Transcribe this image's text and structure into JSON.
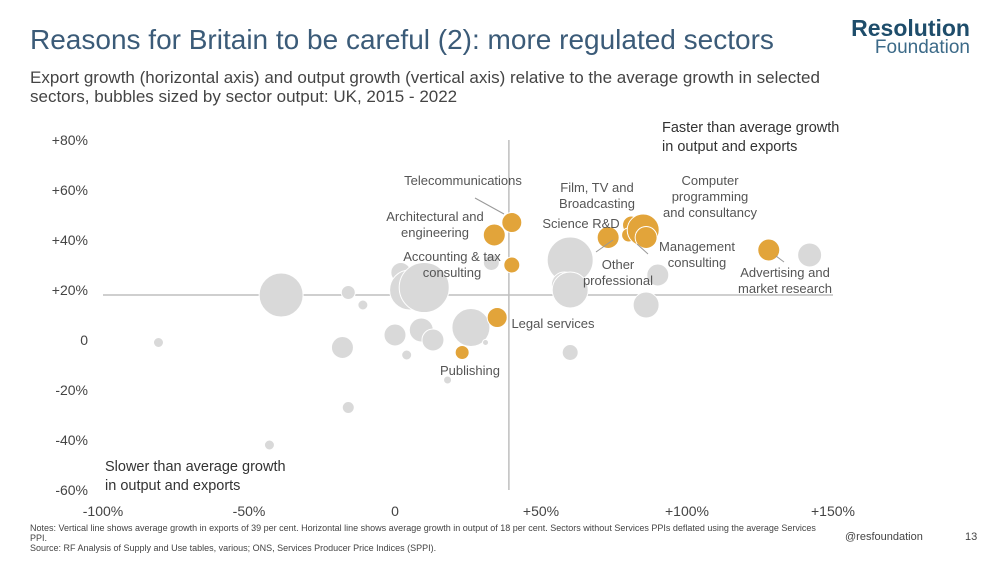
{
  "title": "Reasons for Britain to be careful (2): more regulated sectors",
  "subtitle": "Export growth (horizontal axis) and output growth (vertical axis) relative to the average growth in selected sectors, bubbles sized by sector output: UK, 2015 - 2022",
  "logo": {
    "line1": "Resolution",
    "line2": "Foundation"
  },
  "notes": {
    "line1": "Notes: Vertical line shows average growth in exports of 39 per cent. Horizontal line shows average growth in output of 18 per cent. Sectors without Services PPIs deflated using the average Services PPI.",
    "line2": "Source: RF Analysis of Supply and Use tables, various; ONS, Services Producer Price Indices (SPPI)."
  },
  "footer": {
    "handle": "@resfoundation",
    "page": "13"
  },
  "colors": {
    "highlight": "#e2a43a",
    "other": "#d9d9d9",
    "axis": "#bfbfbf",
    "text": "#444444"
  },
  "chart_data": {
    "type": "scatter",
    "title": "",
    "xlabel": "Export growth",
    "ylabel": "Output growth",
    "xlim": [
      -100,
      150
    ],
    "ylim": [
      -60,
      80
    ],
    "x_ticks": [
      -100,
      -50,
      0,
      50,
      100,
      150
    ],
    "y_ticks": [
      -60,
      -40,
      -20,
      0,
      20,
      40,
      60,
      80
    ],
    "x_tick_labels": [
      "-100%",
      "-50%",
      "0",
      "+50%",
      "+100%",
      "+150%"
    ],
    "y_tick_labels": [
      "-60%",
      "-40%",
      "-20%",
      "0",
      "+20%",
      "+40%",
      "+60%",
      "+80%"
    ],
    "reference_lines": {
      "vertical_x": 39,
      "horizontal_y": 18
    },
    "quadrant_labels": {
      "top_right": [
        "Faster than average growth",
        "in output and exports"
      ],
      "bottom_left": [
        "Slower than average growth",
        "in output and exports"
      ]
    },
    "highlighted": [
      {
        "name": "Telecommunications",
        "label_lines": [
          "Telecommunications"
        ],
        "x": 40,
        "y": 47,
        "r": 10
      },
      {
        "name": "Architectural and engineering",
        "label_lines": [
          "Architectural and",
          "engineering"
        ],
        "x": 34,
        "y": 42,
        "r": 11
      },
      {
        "name": "Accounting & tax consulting",
        "label_lines": [
          "Accounting & tax",
          "consulting"
        ],
        "x": 40,
        "y": 30,
        "r": 8
      },
      {
        "name": "Legal services",
        "label_lines": [
          "Legal services"
        ],
        "x": 35,
        "y": 9,
        "r": 10
      },
      {
        "name": "Publishing",
        "label_lines": [
          "Publishing"
        ],
        "x": 23,
        "y": -5,
        "r": 7
      },
      {
        "name": "Science R&D",
        "label_lines": [
          "Science R&D"
        ],
        "x": 73,
        "y": 41,
        "r": 11
      },
      {
        "name": "Film, TV and Broadcasting",
        "label_lines": [
          "Film, TV and",
          "Broadcasting"
        ],
        "x": 81,
        "y": 46,
        "r": 9
      },
      {
        "name": "Other professional",
        "label_lines": [
          "Other",
          "professional"
        ],
        "x": 80,
        "y": 42,
        "r": 7
      },
      {
        "name": "Computer programming and consultancy",
        "label_lines": [
          "Computer",
          "programming",
          "and consultancy"
        ],
        "x": 85,
        "y": 44,
        "r": 16
      },
      {
        "name": "Management consulting",
        "label_lines": [
          "Management",
          "consulting"
        ],
        "x": 86,
        "y": 41,
        "r": 11
      },
      {
        "name": "Advertising and market research",
        "label_lines": [
          "Advertising and",
          "market research"
        ],
        "x": 128,
        "y": 36,
        "r": 11
      }
    ],
    "others": [
      {
        "x": -39,
        "y": 18,
        "r": 22
      },
      {
        "x": -81,
        "y": -1,
        "r": 5
      },
      {
        "x": -16,
        "y": 19,
        "r": 7
      },
      {
        "x": -11,
        "y": 14,
        "r": 5
      },
      {
        "x": -18,
        "y": -3,
        "r": 11
      },
      {
        "x": -16,
        "y": -27,
        "r": 6
      },
      {
        "x": -43,
        "y": -42,
        "r": 5
      },
      {
        "x": 2,
        "y": 27,
        "r": 10
      },
      {
        "x": 5,
        "y": 20,
        "r": 20
      },
      {
        "x": 10,
        "y": 21,
        "r": 25
      },
      {
        "x": 0,
        "y": 2,
        "r": 11
      },
      {
        "x": 9,
        "y": 4,
        "r": 12
      },
      {
        "x": 13,
        "y": 0,
        "r": 11
      },
      {
        "x": 4,
        "y": -6,
        "r": 5
      },
      {
        "x": 18,
        "y": -16,
        "r": 4
      },
      {
        "x": 26,
        "y": 5,
        "r": 19
      },
      {
        "x": 31,
        "y": -1,
        "r": 3
      },
      {
        "x": 33,
        "y": 31,
        "r": 8
      },
      {
        "x": 60,
        "y": 32,
        "r": 23
      },
      {
        "x": 58,
        "y": 22,
        "r": 13
      },
      {
        "x": 60,
        "y": 20,
        "r": 18
      },
      {
        "x": 60,
        "y": -5,
        "r": 8
      },
      {
        "x": 86,
        "y": 14,
        "r": 13
      },
      {
        "x": 90,
        "y": 26,
        "r": 11
      },
      {
        "x": 142,
        "y": 34,
        "r": 12
      }
    ]
  }
}
